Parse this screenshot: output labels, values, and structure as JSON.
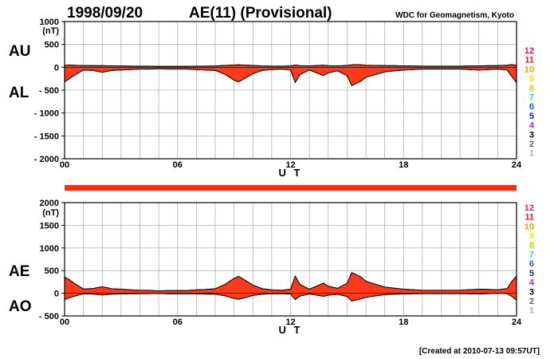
{
  "header": {
    "date": "1998/09/20",
    "title": "AE(11) (Provisional)",
    "source": "WDC for Geomagnetism, Kyoto"
  },
  "footer": {
    "created": "[Created at 2010-07-13 09:57UT]"
  },
  "level_key": {
    "labels": [
      "12",
      "11",
      "10",
      "9",
      "8",
      "7",
      "6",
      "5",
      "4",
      "3",
      "2",
      "1"
    ],
    "colors": [
      "#e8196e",
      "#e81818",
      "#f0a000",
      "#e8e800",
      "#a8e800",
      "#20d8d8",
      "#1060e8",
      "#2020b0",
      "#c020d0",
      "#000000",
      "#606060",
      "#b0b0b0"
    ]
  },
  "bar": {
    "color": "#ff2a10"
  },
  "chart_data": [
    {
      "type": "area",
      "unit": "(nT)",
      "left_label_top": "AU",
      "left_label_bottom": "AL",
      "xlabel": "U T",
      "xlim": [
        0,
        24
      ],
      "ylim": [
        -2000,
        1000
      ],
      "x_ticks": [
        "00",
        "06",
        "12",
        "18",
        "24"
      ],
      "y_ticks": [
        "1000",
        "500",
        "0",
        "- 500",
        "- 1000",
        "- 1500",
        "- 2000"
      ],
      "grid": true,
      "fill_color": "#ff3a1a",
      "x": [
        0,
        0.25,
        0.5,
        0.75,
        1,
        1.5,
        2,
        2.5,
        3,
        3.5,
        4,
        4.5,
        5,
        5.5,
        6,
        6.5,
        7,
        7.5,
        8,
        8.5,
        9,
        9.25,
        9.5,
        10,
        10.5,
        11,
        11.5,
        12,
        12.25,
        12.5,
        13,
        13.5,
        13.75,
        14,
        14.5,
        15,
        15.25,
        15.5,
        15.75,
        16,
        16.5,
        17,
        17.5,
        18,
        18.5,
        19,
        19.5,
        20,
        20.5,
        21,
        21.5,
        22,
        22.5,
        23,
        23.5,
        23.75,
        24
      ],
      "au": [
        40,
        50,
        45,
        40,
        35,
        35,
        35,
        30,
        30,
        25,
        25,
        25,
        20,
        20,
        20,
        20,
        25,
        25,
        30,
        40,
        50,
        55,
        50,
        40,
        30,
        25,
        25,
        30,
        50,
        35,
        30,
        40,
        45,
        35,
        30,
        40,
        55,
        60,
        55,
        45,
        40,
        35,
        35,
        30,
        30,
        25,
        25,
        25,
        25,
        25,
        30,
        30,
        35,
        35,
        45,
        60,
        40
      ],
      "al": [
        -320,
        -250,
        -180,
        -120,
        -60,
        -70,
        -110,
        -70,
        -60,
        -50,
        -40,
        -40,
        -30,
        -40,
        -40,
        -40,
        -50,
        -60,
        -70,
        -150,
        -280,
        -320,
        -260,
        -140,
        -70,
        -50,
        -40,
        -60,
        -330,
        -160,
        -60,
        -140,
        -180,
        -120,
        -80,
        -180,
        -400,
        -350,
        -300,
        -220,
        -160,
        -100,
        -80,
        -60,
        -50,
        -40,
        -40,
        -40,
        -40,
        -40,
        -50,
        -60,
        -50,
        -40,
        -60,
        -200,
        -340
      ]
    },
    {
      "type": "area",
      "unit": "(nT)",
      "left_label_top": "AE",
      "left_label_bottom": "AO",
      "xlabel": "U T",
      "xlim": [
        0,
        24
      ],
      "ylim": [
        -500,
        2000
      ],
      "x_ticks": [
        "00",
        "06",
        "12",
        "18",
        "24"
      ],
      "y_ticks": [
        "2000",
        "1500",
        "1000",
        "500",
        "0",
        "- 500"
      ],
      "grid": true,
      "fill_color": "#ff3a1a",
      "x": [
        0,
        0.25,
        0.5,
        0.75,
        1,
        1.5,
        2,
        2.5,
        3,
        3.5,
        4,
        4.5,
        5,
        5.5,
        6,
        6.5,
        7,
        7.5,
        8,
        8.5,
        9,
        9.25,
        9.5,
        10,
        10.5,
        11,
        11.5,
        12,
        12.25,
        12.5,
        13,
        13.5,
        13.75,
        14,
        14.5,
        15,
        15.25,
        15.5,
        15.75,
        16,
        16.5,
        17,
        17.5,
        18,
        18.5,
        19,
        19.5,
        20,
        20.5,
        21,
        21.5,
        22,
        22.5,
        23,
        23.5,
        23.75,
        24
      ],
      "ae": [
        360,
        300,
        225,
        160,
        95,
        105,
        145,
        100,
        90,
        75,
        65,
        65,
        50,
        60,
        60,
        60,
        75,
        85,
        100,
        190,
        330,
        375,
        310,
        180,
        100,
        75,
        65,
        90,
        380,
        195,
        90,
        180,
        225,
        155,
        110,
        220,
        455,
        410,
        355,
        265,
        200,
        135,
        115,
        90,
        80,
        65,
        65,
        65,
        65,
        65,
        80,
        90,
        85,
        75,
        105,
        260,
        380
      ],
      "ao": [
        -140,
        -100,
        -68,
        -40,
        -12,
        -18,
        -38,
        -20,
        -15,
        -12,
        -8,
        -8,
        -5,
        -10,
        -10,
        -10,
        -12,
        -18,
        -20,
        -55,
        -115,
        -132,
        -105,
        -50,
        -20,
        -12,
        -8,
        -15,
        -140,
        -62,
        -15,
        -50,
        -68,
        -42,
        -25,
        -70,
        -172,
        -145,
        -122,
        -88,
        -60,
        -32,
        -22,
        -15,
        -10,
        -8,
        -8,
        -8,
        -8,
        -8,
        -10,
        -15,
        -8,
        -2,
        -8,
        -70,
        -150
      ]
    }
  ]
}
